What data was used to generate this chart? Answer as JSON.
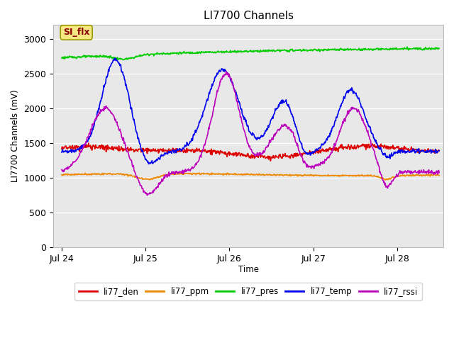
{
  "title": "LI7700 Channels",
  "ylabel": "LI7700 Channels (mV)",
  "xlabel": "Time",
  "ylim": [
    0,
    3200
  ],
  "yticks": [
    0,
    500,
    1000,
    1500,
    2000,
    2500,
    3000
  ],
  "fig_bg_color": "#ffffff",
  "plot_bg_color": "#e8e8e8",
  "annotation_text": "SI_flx",
  "annotation_color": "#8B0000",
  "annotation_bg": "#f5e882",
  "series": {
    "li77_den": {
      "color": "#dd0000",
      "lw": 1.2
    },
    "li77_ppm": {
      "color": "#ee8800",
      "lw": 1.2
    },
    "li77_pres": {
      "color": "#00cc00",
      "lw": 1.2
    },
    "li77_temp": {
      "color": "#0000ee",
      "lw": 1.2
    },
    "li77_rssi": {
      "color": "#bb00bb",
      "lw": 1.2
    }
  },
  "x_ticks": [
    "Jul 24",
    "Jul 25",
    "Jul 26",
    "Jul 27",
    "Jul 28"
  ],
  "x_tick_positions": [
    0.0,
    1.0,
    2.0,
    3.0,
    4.0
  ],
  "x_min": -0.1,
  "x_max": 4.55
}
